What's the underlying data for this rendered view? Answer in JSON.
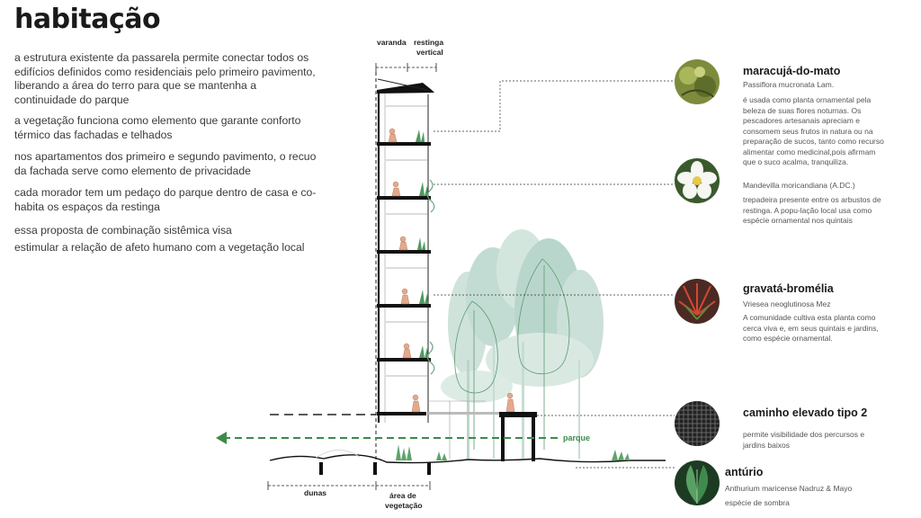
{
  "title": "habitação",
  "paragraphs": [
    "a estrutura existente da passarela permite conectar todos os edifícios definidos como residenciais pelo primeiro pavimento, liberando a área do terro para que se mantenha a continuidade do parque",
    "a vegetação funciona como elemento que garante conforto térmico das fachadas e telhados",
    "nos apartamentos dos primeiro e segundo pavimento, o recuo da fachada serve como elemento de privacidade",
    "cada morador tem um pedaço do parque dentro de casa e co-habita os espaços da restinga",
    "essa proposta de combinação sistêmica visa",
    "estimular a relação de afeto humano com a vegetação local"
  ],
  "section": {
    "label_varanda": "varanda",
    "label_restinga_1": "restinga",
    "label_restinga_2": "vertical",
    "label_parque": "parque",
    "label_dunas": "dunas",
    "label_area_1": "área de",
    "label_area_2": "vegetação"
  },
  "plants": [
    {
      "name": "maracujá-do-mato",
      "scientific": "Passiflora mucronata Lam.",
      "description": "é usada como planta ornamental pela beleza de suas flores noturnas. Os pescadores artesanais apreciam e consomem seus frutos in natura ou na preparação de sucos, tanto como recurso alimentar como medicinal,pois afirmam que o suco acalma, tranquiliza."
    },
    {
      "name": "",
      "scientific": "Mandevilla moricandiana (A.DC.)",
      "description": "trepadeira presente entre os arbustos de restinga. A popu-lação local usa como espécie ornamental nos quintais"
    },
    {
      "name": "gravatá-bromélia",
      "scientific": "Vriesea neoglutinosa Mez",
      "description": "A comunidade cultiva esta planta como cerca viva e, em seus quintais e jardins, como espécie ornamental."
    },
    {
      "name": "caminho elevado tipo 2",
      "scientific": "",
      "description": "permite visibilidade dos percursos e jardins baixos"
    },
    {
      "name": "antúrio",
      "scientific": "Anthurium maricense Nadruz & Mayo",
      "description": "espécie de sombra"
    }
  ],
  "colors": {
    "accent_green": "#3d8a4a",
    "text_dark": "#1a1a1a",
    "text_body": "#3a3a3a",
    "tree_fill": "#b9d6cc"
  },
  "icons": [
    "passion-vine-icon",
    "white-flower-icon",
    "bromeliad-icon",
    "mesh-walkway-icon",
    "anthurium-leaf-icon"
  ]
}
